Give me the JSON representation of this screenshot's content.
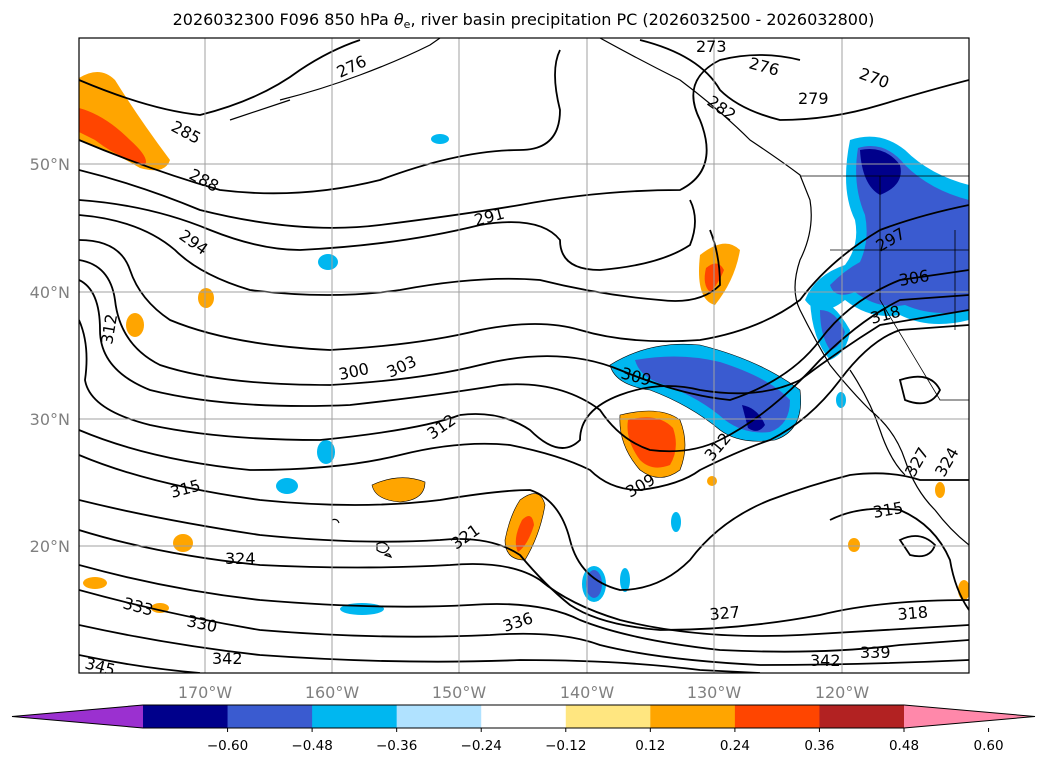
{
  "title": {
    "prefix": "2026032300 F096 850 hPa ",
    "theta": "θ",
    "theta_sub": "e",
    "suffix": ", river basin precipitation PC (2026032500 - 2026032800)"
  },
  "map": {
    "lat_ticks": [
      "50°N",
      "40°N",
      "30°N",
      "20°N"
    ],
    "lon_ticks": [
      "170°W",
      "160°W",
      "150°W",
      "140°W",
      "130°W",
      "120°W"
    ],
    "contour_labels": [
      "273",
      "276",
      "276",
      "282",
      "270",
      "279",
      "285",
      "288",
      "291",
      "294",
      "297",
      "306",
      "318",
      "312",
      "300",
      "303",
      "309",
      "312",
      "312",
      "315",
      "309",
      "321",
      "324",
      "315",
      "333",
      "330",
      "336",
      "327",
      "318",
      "342",
      "342",
      "339",
      "345",
      "327",
      "324"
    ]
  },
  "colorbar": {
    "ticks": [
      "−0.60",
      "−0.48",
      "−0.36",
      "−0.24",
      "−0.12",
      "0.12",
      "0.24",
      "0.36",
      "0.48",
      "0.60"
    ],
    "colors": [
      "#9b30d0",
      "#00008b",
      "#3a5bd0",
      "#00b7f0",
      "#b0e2ff",
      "#ffffff",
      "#ffe680",
      "#ffa500",
      "#ff4500",
      "#b22222",
      "#ff88aa"
    ]
  }
}
